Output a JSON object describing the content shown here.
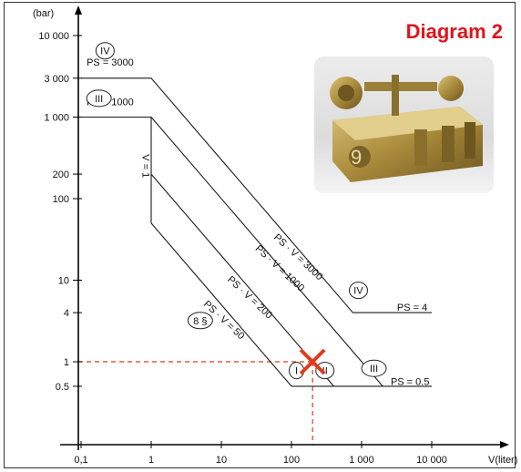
{
  "chart_data": {
    "type": "line",
    "title": "Diagram 2",
    "title_color": "#e0141c",
    "xlabel": "V(liter)",
    "ylabel": "(bar)",
    "x_scale": "log",
    "y_scale": "log",
    "x_ticks": [
      {
        "value": 0.1,
        "label": "0,1"
      },
      {
        "value": 1,
        "label": "1"
      },
      {
        "value": 10,
        "label": "10"
      },
      {
        "value": 100,
        "label": "100"
      },
      {
        "value": 1000,
        "label": "1 000"
      },
      {
        "value": 10000,
        "label": "10 000"
      }
    ],
    "y_ticks": [
      {
        "value": 10000,
        "label": "10 000"
      },
      {
        "value": 3000,
        "label": "3 000"
      },
      {
        "value": 1000,
        "label": "1 000"
      },
      {
        "value": 200,
        "label": "200"
      },
      {
        "value": 100,
        "label": "100"
      },
      {
        "value": 10,
        "label": "10"
      },
      {
        "value": 4,
        "label": "4"
      },
      {
        "value": 1,
        "label": "1"
      },
      {
        "value": 0.5,
        "label": "0.5"
      }
    ],
    "series": [
      {
        "key": "IV",
        "points": [
          [
            0.1,
            3000
          ],
          [
            1,
            3000
          ],
          [
            750,
            4
          ],
          [
            10000,
            4
          ]
        ]
      },
      {
        "key": "III",
        "points": [
          [
            0.1,
            1000
          ],
          [
            1,
            1000
          ],
          [
            2000,
            0.5
          ]
        ]
      },
      {
        "key": "II",
        "points": [
          [
            1,
            200
          ],
          [
            400,
            0.5
          ]
        ]
      },
      {
        "key": "I",
        "points": [
          [
            1,
            50
          ],
          [
            1,
            1000
          ]
        ]
      },
      {
        "key": "I_diag",
        "points": [
          [
            1,
            50
          ],
          [
            100,
            0.5
          ]
        ]
      },
      {
        "key": "base",
        "points": [
          [
            100,
            0.5
          ],
          [
            10000,
            0.5
          ]
        ]
      }
    ],
    "line_labels": [
      {
        "text": "PS = 3000",
        "x": 0.12,
        "y": 4300
      },
      {
        "text": "PS = 1000",
        "x": 0.12,
        "y": 1400
      },
      {
        "text": "V = 1",
        "x": 0.75,
        "y": 350
      },
      {
        "text": "PS · V = 3000",
        "x": 55,
        "y": 33
      },
      {
        "text": "PS · V = 1000",
        "x": 30,
        "y": 24
      },
      {
        "text": "PS · V = 200",
        "x": 12,
        "y": 10
      },
      {
        "text": "PS · V = 50",
        "x": 5.5,
        "y": 5
      },
      {
        "text": "PS = 4",
        "x": 3200,
        "y": 4.2
      },
      {
        "text": "PS = 0.5",
        "x": 2600,
        "y": 0.52
      }
    ],
    "zone_labels": [
      {
        "text": "IV",
        "x": 0.22,
        "y": 6500
      },
      {
        "text": "III",
        "x": 0.18,
        "y": 1700
      },
      {
        "text": "IV",
        "x": 900,
        "y": 7.5
      },
      {
        "text": "III",
        "x": 1500,
        "y": 0.83
      },
      {
        "text": "II",
        "x": 300,
        "y": 0.78
      },
      {
        "text": "I",
        "x": 118,
        "y": 0.78
      },
      {
        "text": "8 §",
        "x": 5,
        "y": 3.2
      }
    ],
    "marker": {
      "x": 200,
      "y": 1,
      "symbol": "X",
      "color": "#e03b1c"
    },
    "guides": {
      "color": "#e03b1c",
      "style": "dashed"
    }
  }
}
